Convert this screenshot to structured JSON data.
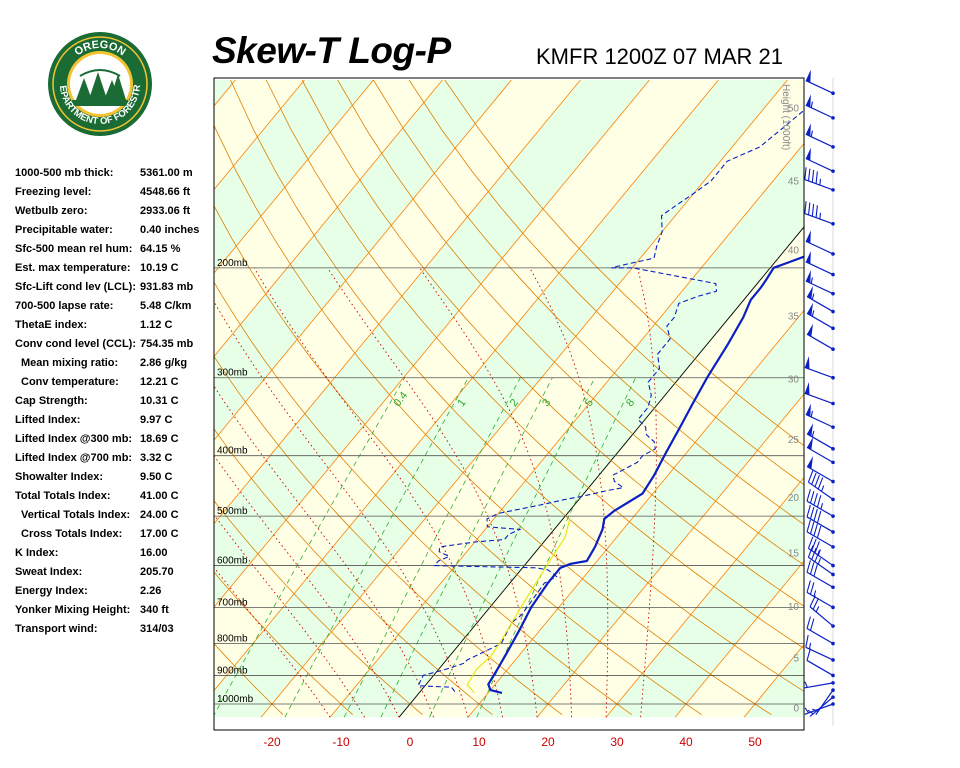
{
  "header": {
    "title": "Skew-T Log-P",
    "station": "KMFR 1200Z 07 MAR 21"
  },
  "logo": {
    "text_top": "OREGON",
    "text_bottom": "DEPARTMENT OF FORESTRY",
    "ring_color": "#1a6b34",
    "inner_color": "#f4c430"
  },
  "indices": [
    {
      "label": "1000-500 mb thick:",
      "value": "5361.00 m"
    },
    {
      "label": "Freezing level:",
      "value": "4548.66 ft"
    },
    {
      "label": "Wetbulb zero:",
      "value": "2933.06 ft"
    },
    {
      "label": "Precipitable water:",
      "value": "0.40 inches"
    },
    {
      "label": "Sfc-500 mean rel hum:",
      "value": "64.15 %"
    },
    {
      "label": "Est. max temperature:",
      "value": "10.19 C"
    },
    {
      "label": "Sfc-Lift cond lev (LCL):",
      "value": "931.83 mb"
    },
    {
      "label": "700-500 lapse rate:",
      "value": "5.48 C/km"
    },
    {
      "label": "ThetaE index:",
      "value": "1.12 C"
    },
    {
      "label": "Conv cond level (CCL):",
      "value": "754.35 mb"
    },
    {
      "label": "Mean mixing ratio:",
      "value": "2.86 g/kg",
      "indent": true
    },
    {
      "label": "Conv temperature:",
      "value": "12.21 C",
      "indent": true
    },
    {
      "label": "Cap Strength:",
      "value": "10.31 C"
    },
    {
      "label": "Lifted Index:",
      "value": "9.97 C"
    },
    {
      "label": "Lifted Index @300 mb:",
      "value": "18.69 C"
    },
    {
      "label": "Lifted Index @700 mb:",
      "value": "3.32 C"
    },
    {
      "label": "Showalter Index:",
      "value": "9.50 C"
    },
    {
      "label": "Total Totals Index:",
      "value": "41.00 C"
    },
    {
      "label": "Vertical Totals Index:",
      "value": "24.00 C",
      "indent": true
    },
    {
      "label": "Cross Totals Index:",
      "value": "17.00 C",
      "indent": true
    },
    {
      "label": "K Index:",
      "value": "16.00"
    },
    {
      "label": "Sweat Index:",
      "value": "205.70"
    },
    {
      "label": "Energy Index:",
      "value": "2.26"
    },
    {
      "label": "Yonker Mixing Height:",
      "value": "340 ft"
    },
    {
      "label": "Transport wind:",
      "value": "314/03"
    }
  ],
  "chart_data": {
    "type": "line",
    "title": "Skew-T Log-P",
    "x_axis": {
      "label": "",
      "unit": "C",
      "range": [
        -30,
        55
      ],
      "ticks": [
        -20,
        -10,
        0,
        10,
        20,
        30,
        40,
        50
      ]
    },
    "pressure_levels": [
      {
        "p": 200,
        "label": "200mb"
      },
      {
        "p": 300,
        "label": "300mb"
      },
      {
        "p": 400,
        "label": "400mb"
      },
      {
        "p": 500,
        "label": "500mb"
      },
      {
        "p": 600,
        "label": "600mb"
      },
      {
        "p": 700,
        "label": "700mb"
      },
      {
        "p": 800,
        "label": "800mb"
      },
      {
        "p": 900,
        "label": "900mb"
      },
      {
        "p": 1000,
        "label": "1000mb"
      }
    ],
    "height_axis": {
      "label": "Height (1000ft)",
      "ticks": [
        0,
        5,
        10,
        15,
        20,
        25,
        30,
        35,
        40,
        45,
        50
      ]
    },
    "mixing_ratio_labels": [
      "0.4",
      "1",
      "2",
      "3",
      "5",
      "8"
    ],
    "series": [
      {
        "role": "temperature",
        "color": "#0a1fc4",
        "style": "solid",
        "points": [
          [
            12,
            960
          ],
          [
            10,
            950
          ],
          [
            9,
            930
          ],
          [
            8.5,
            880
          ],
          [
            8,
            835
          ],
          [
            7,
            760
          ],
          [
            6,
            700
          ],
          [
            5.5,
            640
          ],
          [
            5.5,
            605
          ],
          [
            6.5,
            596
          ],
          [
            8.5,
            590
          ],
          [
            8,
            560
          ],
          [
            7,
            525
          ],
          [
            6,
            505
          ],
          [
            6.5,
            490
          ],
          [
            8.5,
            460
          ],
          [
            8,
            430
          ],
          [
            7,
            395
          ],
          [
            6,
            360
          ],
          [
            5,
            330
          ],
          [
            4,
            300
          ],
          [
            3,
            265
          ],
          [
            2,
            240
          ],
          [
            1,
            225
          ],
          [
            1,
            215
          ],
          [
            0.8,
            208
          ],
          [
            0.5,
            200
          ],
          [
            2,
            196
          ],
          [
            3.5,
            192
          ],
          [
            5.5,
            190
          ],
          [
            9,
            187
          ],
          [
            13,
            184
          ],
          [
            17,
            182
          ],
          [
            19,
            180
          ],
          [
            21,
            176
          ],
          [
            22.5,
            172
          ],
          [
            22,
            165
          ],
          [
            22,
            155
          ],
          [
            23.5,
            148
          ],
          [
            26,
            142
          ],
          [
            27,
            137
          ],
          [
            27,
            130
          ],
          [
            28,
            125
          ],
          [
            28,
            120
          ],
          [
            30,
            115
          ],
          [
            33,
            110
          ],
          [
            35,
            107
          ],
          [
            35.5,
            105
          ]
        ]
      },
      {
        "role": "dewpoint",
        "color": "#0a1fc4",
        "style": "dashed",
        "points": [
          [
            5,
            955
          ],
          [
            4,
            940
          ],
          [
            -1,
            935
          ],
          [
            -1.5,
            900
          ],
          [
            1,
            880
          ],
          [
            3,
            860
          ],
          [
            3,
            850
          ],
          [
            6,
            800
          ],
          [
            5,
            740
          ],
          [
            5.5,
            720
          ],
          [
            5,
            640
          ],
          [
            6,
            625
          ],
          [
            4,
            610
          ],
          [
            2,
            605
          ],
          [
            -13,
            600
          ],
          [
            -13,
            590
          ],
          [
            -12,
            580
          ],
          [
            -14,
            570
          ],
          [
            -14.5,
            560
          ],
          [
            -10,
            550
          ],
          [
            -6,
            545
          ],
          [
            -6,
            535
          ],
          [
            -5,
            525
          ],
          [
            -10,
            520
          ],
          [
            -11,
            505
          ],
          [
            -10,
            495
          ],
          [
            -5,
            480
          ],
          [
            -2,
            470
          ],
          [
            0,
            465
          ],
          [
            3,
            455
          ],
          [
            5,
            450
          ],
          [
            3,
            440
          ],
          [
            2,
            430
          ],
          [
            3,
            420
          ],
          [
            4,
            410
          ],
          [
            4,
            400
          ],
          [
            5,
            390
          ],
          [
            4,
            380
          ],
          [
            2,
            370
          ],
          [
            1,
            360
          ],
          [
            -1,
            350
          ],
          [
            -1,
            335
          ],
          [
            -2,
            320
          ],
          [
            -4,
            305
          ],
          [
            -4,
            290
          ],
          [
            -6,
            275
          ],
          [
            -6,
            260
          ],
          [
            -8,
            248
          ],
          [
            -8,
            240
          ],
          [
            -9,
            228
          ],
          [
            -7,
            222
          ],
          [
            -5,
            218
          ],
          [
            -6,
            212
          ],
          [
            -14,
            205
          ],
          [
            -20,
            200
          ],
          [
            -23,
            200
          ],
          [
            -21,
            197
          ],
          [
            -18,
            193
          ],
          [
            -19,
            185
          ],
          [
            -20,
            175
          ],
          [
            -22,
            165
          ],
          [
            -21,
            158
          ],
          [
            -20,
            152
          ],
          [
            -19,
            145
          ],
          [
            -19,
            135
          ],
          [
            -16,
            128
          ],
          [
            -15,
            120
          ],
          [
            -14,
            112
          ],
          [
            -13,
            106
          ]
        ]
      },
      {
        "role": "parcel",
        "color": "#e6e600",
        "style": "solid",
        "points": [
          [
            8,
            960
          ],
          [
            7,
            945
          ],
          [
            6,
            932
          ],
          [
            5.5,
            880
          ],
          [
            6,
            835
          ],
          [
            5.5,
            780
          ],
          [
            5,
            740
          ],
          [
            4.5,
            700
          ],
          [
            4,
            660
          ],
          [
            3.5,
            620
          ],
          [
            3,
            580
          ],
          [
            2.5,
            540
          ],
          [
            1,
            505
          ]
        ]
      }
    ],
    "wind_barbs": [
      {
        "p": 1000,
        "dir": 250,
        "kt": 5
      },
      {
        "p": 975,
        "dir": 230,
        "kt": 5
      },
      {
        "p": 950,
        "dir": 215,
        "kt": 5
      },
      {
        "p": 925,
        "dir": 260,
        "kt": 5
      },
      {
        "p": 900,
        "dir": 300,
        "kt": 10
      },
      {
        "p": 850,
        "dir": 295,
        "kt": 15
      },
      {
        "p": 800,
        "dir": 300,
        "kt": 20
      },
      {
        "p": 750,
        "dir": 310,
        "kt": 25
      },
      {
        "p": 700,
        "dir": 300,
        "kt": 25
      },
      {
        "p": 650,
        "dir": 300,
        "kt": 30
      },
      {
        "p": 620,
        "dir": 305,
        "kt": 35
      },
      {
        "p": 600,
        "dir": 305,
        "kt": 35
      },
      {
        "p": 560,
        "dir": 300,
        "kt": 40
      },
      {
        "p": 530,
        "dir": 300,
        "kt": 40
      },
      {
        "p": 500,
        "dir": 300,
        "kt": 45
      },
      {
        "p": 470,
        "dir": 305,
        "kt": 45
      },
      {
        "p": 440,
        "dir": 300,
        "kt": 50
      },
      {
        "p": 410,
        "dir": 300,
        "kt": 50
      },
      {
        "p": 390,
        "dir": 300,
        "kt": 55
      },
      {
        "p": 360,
        "dir": 295,
        "kt": 55
      },
      {
        "p": 330,
        "dir": 290,
        "kt": 50
      },
      {
        "p": 300,
        "dir": 290,
        "kt": 50
      },
      {
        "p": 270,
        "dir": 300,
        "kt": 50
      },
      {
        "p": 250,
        "dir": 300,
        "kt": 55
      },
      {
        "p": 235,
        "dir": 300,
        "kt": 55
      },
      {
        "p": 220,
        "dir": 295,
        "kt": 55
      },
      {
        "p": 205,
        "dir": 295,
        "kt": 50
      },
      {
        "p": 190,
        "dir": 295,
        "kt": 50
      },
      {
        "p": 170,
        "dir": 290,
        "kt": 45
      },
      {
        "p": 150,
        "dir": 290,
        "kt": 45
      },
      {
        "p": 140,
        "dir": 295,
        "kt": 50
      },
      {
        "p": 128,
        "dir": 295,
        "kt": 55
      },
      {
        "p": 115,
        "dir": 295,
        "kt": 55
      },
      {
        "p": 105,
        "dir": 295,
        "kt": 50
      }
    ],
    "colors": {
      "isotherm": "#ff8000",
      "dry_adiabat": "#e08000",
      "moist_adiabat": "#cc0000",
      "mixing_ratio": "#33aa33",
      "isobar": "#555555",
      "zero_isotherm": "#000000",
      "band_yellow": "#ffffe6",
      "band_green": "#e6ffe6",
      "x_tick": "#cc0000",
      "height_tick": "#888888"
    }
  }
}
